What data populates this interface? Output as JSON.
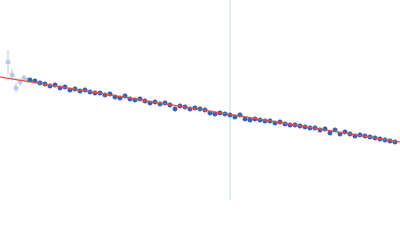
{
  "chart_data": {
    "type": "scatter",
    "xlim": [
      0,
      400
    ],
    "ylim": [
      0,
      200
    ],
    "vline": 230,
    "vline_color": "#cdd8ea",
    "excluded": {
      "color": "#b9c9e6",
      "x": [
        8,
        12,
        16,
        20,
        24,
        28
      ],
      "values": [
        138,
        125,
        112,
        118,
        122,
        120
      ],
      "errors": [
        12,
        6,
        5,
        4,
        3,
        3
      ]
    },
    "points": {
      "color": "#3862b0",
      "x": [
        30,
        35,
        40,
        45,
        50,
        55,
        60,
        65,
        70,
        75,
        80,
        85,
        90,
        95,
        100,
        105,
        110,
        115,
        120,
        125,
        130,
        135,
        140,
        145,
        150,
        155,
        160,
        165,
        170,
        175,
        180,
        185,
        190,
        195,
        200,
        205,
        210,
        215,
        220,
        225,
        230,
        235,
        240,
        245,
        250,
        255,
        260,
        265,
        270,
        275,
        280,
        285,
        290,
        295,
        300,
        305,
        310,
        315,
        320,
        325,
        330,
        335,
        340,
        345,
        350,
        355,
        360,
        365,
        370,
        375,
        380,
        385,
        390,
        395
      ],
      "values": [
        120,
        119,
        117,
        116,
        114,
        115,
        112,
        113,
        110,
        111,
        109,
        110,
        108,
        107,
        107,
        105,
        106,
        103,
        102,
        104,
        101,
        100,
        101,
        99,
        97,
        98,
        96,
        97,
        95,
        91,
        94,
        93,
        91,
        92,
        91,
        90,
        87,
        86,
        87,
        86,
        85,
        83,
        85,
        81,
        80,
        81,
        80,
        79,
        79,
        77,
        78,
        76,
        75,
        75,
        74,
        73,
        72,
        72,
        70,
        71,
        67,
        70,
        66,
        68,
        66,
        64,
        65,
        64,
        63,
        62,
        61,
        60,
        59,
        58
      ]
    },
    "fit": {
      "color": "#e0504a",
      "x": [
        0,
        400
      ],
      "values": [
        123,
        58
      ]
    }
  }
}
